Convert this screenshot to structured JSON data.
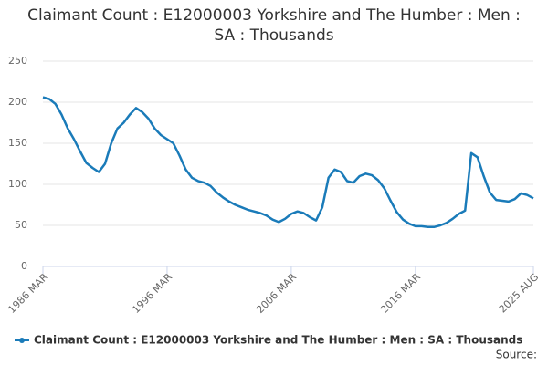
{
  "chart_data": {
    "type": "line",
    "title": "Claimant Count : E12000003 Yorkshire and The Humber : Men : SA : Thousands",
    "categories": [
      "1986 MAR",
      null,
      null,
      null,
      null,
      null,
      null,
      null,
      null,
      null,
      null,
      null,
      null,
      null,
      null,
      null,
      null,
      null,
      null,
      null,
      "1996 MAR",
      null,
      null,
      null,
      null,
      null,
      null,
      null,
      null,
      null,
      null,
      null,
      null,
      null,
      null,
      null,
      null,
      null,
      null,
      null,
      "2006 MAR",
      null,
      null,
      null,
      null,
      null,
      null,
      null,
      null,
      null,
      null,
      null,
      null,
      null,
      null,
      null,
      null,
      null,
      null,
      null,
      "2016 MAR",
      null,
      null,
      null,
      null,
      null,
      null,
      null,
      null,
      null,
      null,
      null,
      null,
      null,
      null,
      null,
      null,
      null,
      null,
      "2025 AUG"
    ],
    "series": [
      {
        "name": "Claimant Count : E12000003 Yorkshire and The Humber : Men : SA : Thousands",
        "color": "#1a7bb9",
        "values": [
          206,
          204,
          198,
          185,
          168,
          155,
          140,
          126,
          120,
          115,
          125,
          150,
          168,
          175,
          185,
          193,
          188,
          180,
          168,
          160,
          155,
          150,
          135,
          118,
          108,
          104,
          102,
          98,
          90,
          84,
          79,
          75,
          72,
          69,
          67,
          65,
          62,
          57,
          54,
          58,
          64,
          67,
          65,
          60,
          56,
          72,
          108,
          118,
          115,
          104,
          102,
          110,
          113,
          111,
          105,
          95,
          80,
          66,
          57,
          52,
          49,
          49,
          48,
          48,
          50,
          53,
          58,
          64,
          68,
          138,
          133,
          110,
          90,
          81,
          80,
          79,
          82,
          89,
          87,
          83
        ]
      }
    ],
    "ylim": [
      0,
      250
    ],
    "yticks": [
      0,
      50,
      100,
      150,
      200,
      250
    ],
    "grid": true,
    "legend": "bottom",
    "source": "Source:"
  }
}
